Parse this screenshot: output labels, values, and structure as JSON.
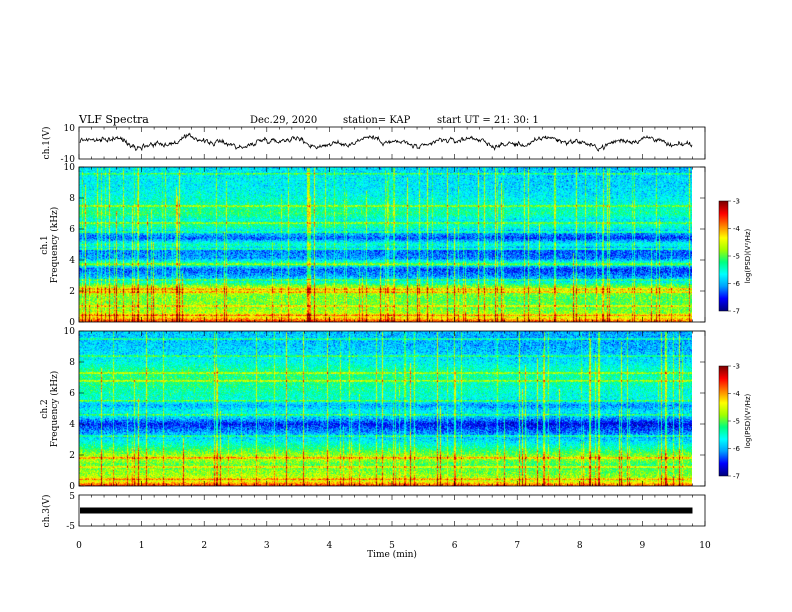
{
  "header": {
    "title": "VLF Spectra",
    "date": "Dec.29, 2020",
    "station": "station= KAP",
    "start_ut": "start UT =  21: 30: 1"
  },
  "chart_data": {
    "type": "heatmap",
    "x_axis": {
      "label": "Time (min)",
      "range": [
        0,
        10
      ],
      "ticks": [
        "0",
        "1",
        "2",
        "3",
        "4",
        "5",
        "6",
        "7",
        "8",
        "9",
        "10"
      ],
      "data_end": 9.8
    },
    "panels": [
      {
        "name": "ch1-waveform",
        "type": "line",
        "ylabel": "ch.1(V)",
        "ylim": [
          -10,
          10
        ],
        "yticks": [
          "10",
          "-10"
        ],
        "description": "noisy waveform oscillating roughly between -4 and +5 V"
      },
      {
        "name": "ch1-spectrogram",
        "type": "heatmap",
        "ylabel_line1": "ch.1",
        "ylabel_line2": "Frequency (kHz)",
        "ylim": [
          0,
          10
        ],
        "yticks": [
          "0",
          "2",
          "4",
          "6",
          "8",
          "10"
        ],
        "colorbar": {
          "label": "log(PSD)(V²/Hz)",
          "range": [
            -7,
            -3
          ],
          "ticks": [
            "-3",
            "-4",
            "-5",
            "-6",
            "-7"
          ]
        },
        "freq_profile_khz": [
          [
            0.0,
            -3.6
          ],
          [
            0.3,
            -4.4
          ],
          [
            0.6,
            -4.7
          ],
          [
            1.0,
            -4.9
          ],
          [
            1.6,
            -4.9
          ],
          [
            2.0,
            -4.6
          ],
          [
            2.3,
            -4.8
          ],
          [
            2.6,
            -5.6
          ],
          [
            3.0,
            -6.1
          ],
          [
            3.4,
            -6.3
          ],
          [
            3.8,
            -5.3
          ],
          [
            4.1,
            -6.1
          ],
          [
            4.6,
            -6.2
          ],
          [
            5.0,
            -5.4
          ],
          [
            5.4,
            -6.3
          ],
          [
            5.8,
            -5.9
          ],
          [
            6.2,
            -5.3
          ],
          [
            6.6,
            -5.6
          ],
          [
            7.0,
            -5.2
          ],
          [
            7.6,
            -5.4
          ],
          [
            8.2,
            -5.6
          ],
          [
            8.8,
            -5.7
          ],
          [
            9.4,
            -5.7
          ],
          [
            10.0,
            -5.8
          ]
        ],
        "lines_khz": [
          0.4,
          1.0,
          1.9,
          2.1,
          2.7,
          3.7,
          4.7,
          5.8,
          6.4,
          7.5,
          9.6
        ]
      },
      {
        "name": "ch2-spectrogram",
        "type": "heatmap",
        "ylabel_line1": "ch.2",
        "ylabel_line2": "Frequency (kHz)",
        "ylim": [
          0,
          10
        ],
        "yticks": [
          "0",
          "2",
          "4",
          "6",
          "8",
          "10"
        ],
        "colorbar": {
          "label": "log(PSD)(V²/Hz)",
          "range": [
            -7,
            -3
          ],
          "ticks": [
            "-3",
            "-4",
            "-5",
            "-6",
            "-7"
          ]
        },
        "freq_profile_khz": [
          [
            0.0,
            -3.6
          ],
          [
            0.3,
            -4.5
          ],
          [
            0.8,
            -4.8
          ],
          [
            1.4,
            -5.0
          ],
          [
            1.8,
            -4.6
          ],
          [
            2.2,
            -5.0
          ],
          [
            2.8,
            -5.6
          ],
          [
            3.2,
            -5.9
          ],
          [
            3.6,
            -6.2
          ],
          [
            4.0,
            -6.5
          ],
          [
            4.4,
            -5.9
          ],
          [
            4.8,
            -5.6
          ],
          [
            5.2,
            -6.0
          ],
          [
            5.6,
            -5.5
          ],
          [
            6.0,
            -5.4
          ],
          [
            6.5,
            -5.3
          ],
          [
            7.0,
            -5.2
          ],
          [
            7.5,
            -5.3
          ],
          [
            8.0,
            -5.6
          ],
          [
            8.6,
            -5.8
          ],
          [
            9.2,
            -5.9
          ],
          [
            10.0,
            -5.9
          ]
        ],
        "lines_khz": [
          0.4,
          1.2,
          1.8,
          3.2,
          4.6,
          5.5,
          6.8,
          7.3,
          8.4,
          9.5
        ]
      },
      {
        "name": "ch3-waveform",
        "type": "line",
        "ylabel": "ch.3(V)",
        "ylim": [
          -5,
          5
        ],
        "yticks": [
          "5",
          "-5"
        ],
        "constant_value": 0
      }
    ]
  },
  "colors": {
    "colormap": [
      "#000080",
      "#0000ff",
      "#00a0ff",
      "#00ffff",
      "#00ff80",
      "#a0ff00",
      "#ffff00",
      "#ff8000",
      "#ff0000",
      "#800000"
    ],
    "axis": "#000000",
    "trace": "#000000"
  }
}
